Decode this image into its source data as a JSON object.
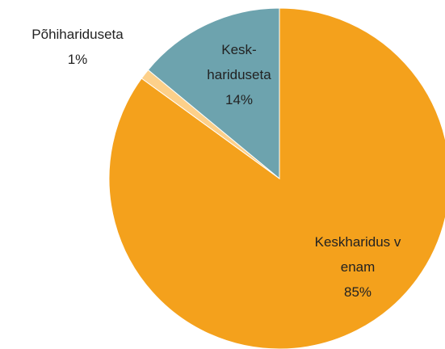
{
  "chart_data": {
    "type": "pie",
    "categories": [
      "Keskharidus v enam",
      "Põhihariduseta",
      "Kesk-hariduseta"
    ],
    "values": [
      85,
      1,
      14
    ],
    "value_labels": [
      "85%",
      "1%",
      "14%"
    ],
    "colors": [
      "#F4A11C",
      "#FDD08A",
      "#6DA3AE"
    ]
  }
}
